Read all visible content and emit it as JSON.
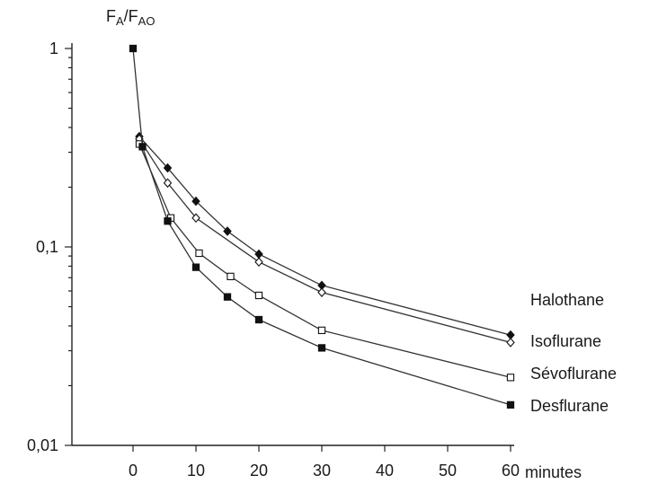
{
  "chart_data": {
    "type": "line",
    "title": "",
    "ylabel_main": "F",
    "ylabel_sub1": "A",
    "ylabel_sep": "/F",
    "ylabel_sub2": "AO",
    "xlabel": "minutes",
    "yscale": "log",
    "xlim": [
      -8,
      60
    ],
    "ylim": [
      0.01,
      1
    ],
    "x_ticks": [
      0,
      10,
      20,
      30,
      40,
      50,
      60
    ],
    "x_tick_labels": [
      "0",
      "10",
      "20",
      "30",
      "40",
      "50",
      "60"
    ],
    "y_major_ticks": [
      {
        "value": 0.01,
        "label": "0,01"
      },
      {
        "value": 0.1,
        "label": "0,1"
      },
      {
        "value": 1,
        "label": "1"
      }
    ],
    "grid": false,
    "series": [
      {
        "name": "Halothane",
        "marker": "filled-diamond",
        "x": [
          1,
          5.5,
          10,
          15,
          20,
          30,
          60
        ],
        "y": [
          0.36,
          0.25,
          0.17,
          0.12,
          0.092,
          0.064,
          0.036
        ]
      },
      {
        "name": "Isoflurane",
        "marker": "open-diamond",
        "x": [
          1,
          5.5,
          10,
          20,
          30,
          60
        ],
        "y": [
          0.35,
          0.21,
          0.14,
          0.084,
          0.059,
          0.033
        ]
      },
      {
        "name": "Sévoflurane",
        "marker": "open-square",
        "x": [
          1,
          6,
          10.5,
          15.5,
          20,
          30,
          60
        ],
        "y": [
          0.33,
          0.14,
          0.093,
          0.071,
          0.057,
          0.038,
          0.022
        ]
      },
      {
        "name": "Desflurane",
        "marker": "filled-square",
        "x": [
          0,
          1.5,
          5.5,
          10,
          15,
          20,
          30,
          60
        ],
        "y": [
          1.0,
          0.32,
          0.135,
          0.079,
          0.056,
          0.043,
          0.031,
          0.016
        ]
      }
    ]
  }
}
